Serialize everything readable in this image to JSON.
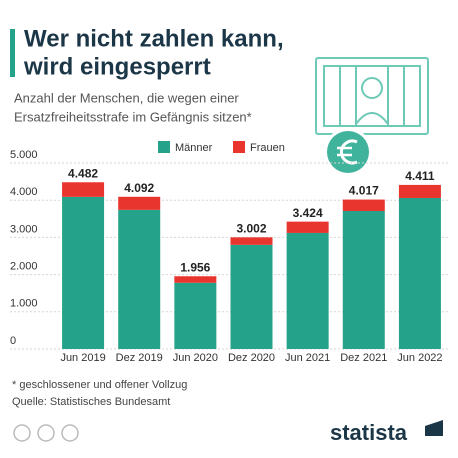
{
  "chart_data": {
    "type": "bar",
    "stacked": true,
    "title": [
      "Wer nicht zahlen kann,",
      "wird eingesperrt"
    ],
    "subtitle": [
      "Anzahl der Menschen, die wegen einer",
      "Ersatzfreiheitsstrafe im Gefängnis sitzen*"
    ],
    "categories": [
      "Jun 2019",
      "Dez 2019",
      "Jun 2020",
      "Dez 2020",
      "Jun 2021",
      "Dez 2021",
      "Jun 2022"
    ],
    "series": [
      {
        "name": "Männer",
        "color": "#25a38a",
        "values": [
          4090,
          3740,
          1780,
          2800,
          3120,
          3710,
          4060
        ]
      },
      {
        "name": "Frauen",
        "color": "#e8352d",
        "values": [
          392,
          352,
          176,
          202,
          304,
          307,
          351
        ]
      }
    ],
    "totals": {
      "values": [
        4482,
        4092,
        1956,
        3002,
        3424,
        4017,
        4411
      ],
      "value_labels": [
        "4.482",
        "4.092",
        "1.956",
        "3.002",
        "3.424",
        "4.017",
        "4.411"
      ]
    },
    "ylim": [
      0,
      5000
    ],
    "yticks": [
      0,
      {
        "value": 1000,
        "label": "1.000"
      },
      {
        "value": 2000,
        "label": "2.000"
      },
      {
        "value": 3000,
        "label": "3.000"
      },
      {
        "value": 4000,
        "label": "4.000"
      },
      {
        "value": 5000,
        "label": "5.000"
      }
    ],
    "grid": true,
    "notes": [
      "* geschlossener und offener Vollzug",
      "Quelle: Statistisches Bundesamt"
    ],
    "brand": "statista"
  }
}
